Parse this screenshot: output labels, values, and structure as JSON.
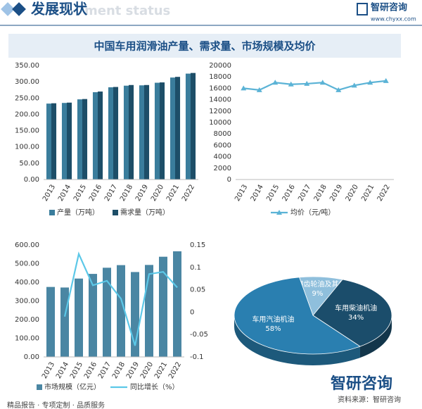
{
  "header": {
    "title": "发展现状",
    "faded_title": "ment status",
    "logo": "智研咨询",
    "url": "www.chyxx.com"
  },
  "banner_title": "中国车用润滑油产量、需求量、市场规模及均价",
  "footer": {
    "slogan": "精品报告 · 专项定制 · 品质服务",
    "source": "资料来源：智研咨询",
    "logo": "智研咨询"
  },
  "chart_data": [
    {
      "type": "bar",
      "categories": [
        "2013",
        "2014",
        "2015",
        "2016",
        "2017",
        "2018",
        "2019",
        "2020",
        "2021",
        "2022"
      ],
      "series": [
        {
          "name": "产量（万吨）",
          "color": "#3a7d9c",
          "values": [
            233,
            235,
            246,
            268,
            283,
            288,
            289,
            297,
            313,
            325
          ]
        },
        {
          "name": "需求量（万吨）",
          "color": "#1d4e68",
          "values": [
            234,
            236,
            247,
            270,
            284,
            290,
            290,
            298,
            315,
            327
          ]
        }
      ],
      "ylim": [
        0,
        350
      ],
      "yticks": [
        {
          "value": 0,
          "label": "0.00"
        },
        {
          "value": 50,
          "label": "50.00"
        },
        {
          "value": 100,
          "label": "100.00"
        },
        {
          "value": 150,
          "label": "150.00"
        },
        {
          "value": 200,
          "label": "200.00"
        },
        {
          "value": 250,
          "label": "250.00"
        },
        {
          "value": 300,
          "label": "300.00"
        },
        {
          "value": 350,
          "label": "350.00"
        }
      ]
    },
    {
      "type": "line",
      "categories": [
        "2013",
        "2014",
        "2015",
        "2016",
        "2017",
        "2018",
        "2019",
        "2020",
        "2021",
        "2022"
      ],
      "series": [
        {
          "name": "均价（元/吨）",
          "color": "#5bb3d6",
          "marker": "triangle",
          "values": [
            16000,
            15700,
            17000,
            16700,
            16800,
            17000,
            15700,
            16500,
            17000,
            17300
          ]
        }
      ],
      "ylim": [
        0,
        20000
      ],
      "yticks": [
        0,
        2000,
        4000,
        6000,
        8000,
        10000,
        12000,
        14000,
        16000,
        18000,
        20000
      ]
    },
    {
      "type": "bar-line",
      "categories": [
        "2013",
        "2014",
        "2015",
        "2016",
        "2017",
        "2018",
        "2019",
        "2020",
        "2021",
        "2022"
      ],
      "series": [
        {
          "name": "市场规模（亿元）",
          "color": "#4a86a3",
          "values": [
            375,
            372,
            420,
            445,
            478,
            492,
            455,
            493,
            537,
            566
          ]
        },
        {
          "name": "同比增长（%）",
          "color": "#5cc8e8",
          "axis": "y2",
          "values": [
            null,
            -0.01,
            0.13,
            0.06,
            0.07,
            0.03,
            -0.075,
            0.085,
            0.09,
            0.055
          ]
        }
      ],
      "ylim": [
        0,
        600
      ],
      "yticks": [
        {
          "value": 0,
          "label": "0.00"
        },
        {
          "value": 100,
          "label": "100.00"
        },
        {
          "value": 200,
          "label": "200.00"
        },
        {
          "value": 300,
          "label": "300.00"
        },
        {
          "value": 400,
          "label": "400.00"
        },
        {
          "value": 500,
          "label": "500.00"
        },
        {
          "value": 600,
          "label": "600.00"
        }
      ],
      "y2lim": [
        -0.1,
        0.15
      ],
      "y2ticks": [
        -0.1,
        -0.05,
        0,
        0.05,
        0.1,
        0.15
      ]
    },
    {
      "type": "pie",
      "categories": [
        "车用齿轮油及其他",
        "车用柴油机油",
        "车用汽油机油"
      ],
      "values": [
        9,
        34,
        58
      ],
      "value_labels": [
        "9%",
        "34%",
        "58%"
      ],
      "colors": [
        "#8fbfdc",
        "#1b4d6b",
        "#2a7fb0"
      ]
    }
  ]
}
